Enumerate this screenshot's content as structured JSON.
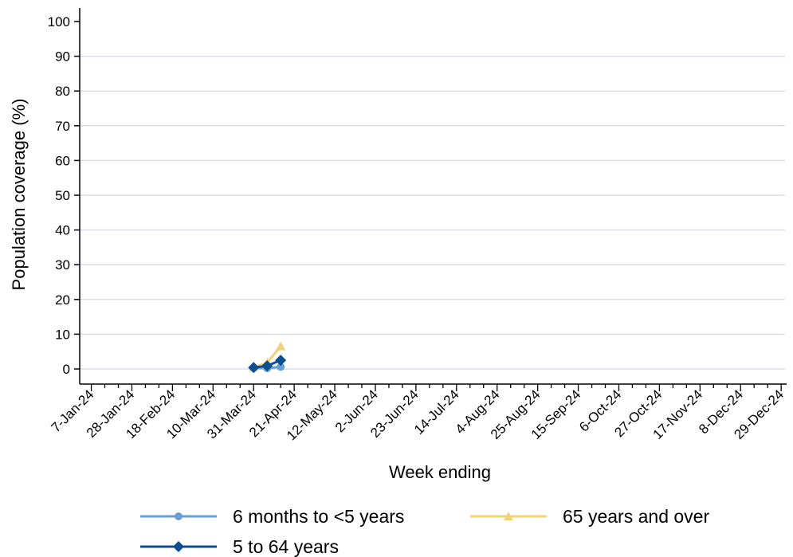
{
  "chart_data": {
    "type": "line",
    "title": "",
    "xlabel": "Week ending",
    "ylabel": "Population coverage (%)",
    "ylim": [
      0,
      100
    ],
    "yticks": [
      0,
      10,
      20,
      30,
      40,
      50,
      60,
      70,
      80,
      90,
      100
    ],
    "grid": true,
    "legend_position": "bottom",
    "x_tick_labels": [
      "7-Jan-24",
      "28-Jan-24",
      "18-Feb-24",
      "10-Mar-24",
      "31-Mar-24",
      "21-Apr-24",
      "12-May-24",
      "2-Jun-24",
      "23-Jun-24",
      "14-Jul-24",
      "4-Aug-24",
      "25-Aug-24",
      "15-Sep-24",
      "6-Oct-24",
      "27-Oct-24",
      "17-Nov-24",
      "8-Dec-24",
      "29-Dec-24"
    ],
    "x": [
      "31-Mar-24",
      "7-Apr-24",
      "14-Apr-24"
    ],
    "series": [
      {
        "name": "6 months to <5 years",
        "color": "#6a9ed2",
        "marker": "circle",
        "values": [
          0.3,
          0.2,
          0.6
        ]
      },
      {
        "name": "65 years and over",
        "color": "#f0d27a",
        "marker": "triangle",
        "values": [
          0.4,
          1.8,
          6.5
        ]
      },
      {
        "name": "5 to 64 years",
        "color": "#0b4e92",
        "marker": "diamond",
        "values": [
          0.4,
          0.9,
          2.5
        ]
      }
    ]
  }
}
